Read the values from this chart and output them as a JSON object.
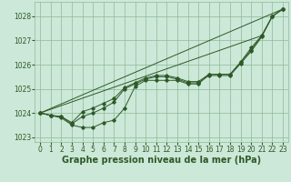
{
  "xlabel": "Graphe pression niveau de la mer (hPa)",
  "x": [
    0,
    1,
    2,
    3,
    4,
    5,
    6,
    7,
    8,
    9,
    10,
    11,
    12,
    13,
    14,
    15,
    16,
    17,
    18,
    19,
    20,
    21,
    22,
    23
  ],
  "line_color": "#2d5a27",
  "bg_color": "#cce8d8",
  "grid_color": "#8cba98",
  "ylim": [
    1022.8,
    1028.6
  ],
  "xlim": [
    -0.5,
    23.5
  ],
  "yticks": [
    1023,
    1024,
    1025,
    1026,
    1027,
    1028
  ],
  "xticks": [
    0,
    1,
    2,
    3,
    4,
    5,
    6,
    7,
    8,
    9,
    10,
    11,
    12,
    13,
    14,
    15,
    16,
    17,
    18,
    19,
    20,
    21,
    22,
    23
  ],
  "tick_fontsize": 5.5,
  "xlabel_fontsize": 7.0,
  "label_color": "#2d5a27",
  "detailed_lines": [
    [
      1024.0,
      1023.9,
      1023.8,
      1023.5,
      1023.4,
      1023.4,
      1023.6,
      1023.7,
      1024.2,
      1025.1,
      1025.35,
      1025.35,
      1025.35,
      1025.35,
      1025.2,
      1025.2,
      1025.6,
      1025.6,
      1025.6,
      1026.1,
      1026.7,
      1027.2,
      1028.0,
      1028.3
    ],
    [
      1024.0,
      1023.9,
      1023.85,
      1023.55,
      1023.85,
      1024.0,
      1024.2,
      1024.45,
      1025.0,
      1025.2,
      1025.4,
      1025.5,
      1025.5,
      1025.4,
      1025.25,
      1025.25,
      1025.55,
      1025.55,
      1025.55,
      1026.05,
      1026.55,
      1027.15,
      1028.0,
      1028.3
    ],
    [
      1024.0,
      1023.9,
      1023.85,
      1023.6,
      1024.05,
      1024.2,
      1024.4,
      1024.6,
      1025.05,
      1025.25,
      1025.45,
      1025.55,
      1025.55,
      1025.45,
      1025.3,
      1025.3,
      1025.6,
      1025.6,
      1025.6,
      1026.1,
      1026.6,
      1027.2,
      1028.0,
      1028.3
    ]
  ],
  "straight_lines": [
    [
      0,
      23,
      1024.0,
      1028.3
    ],
    [
      0,
      21,
      1024.0,
      1027.2
    ]
  ]
}
